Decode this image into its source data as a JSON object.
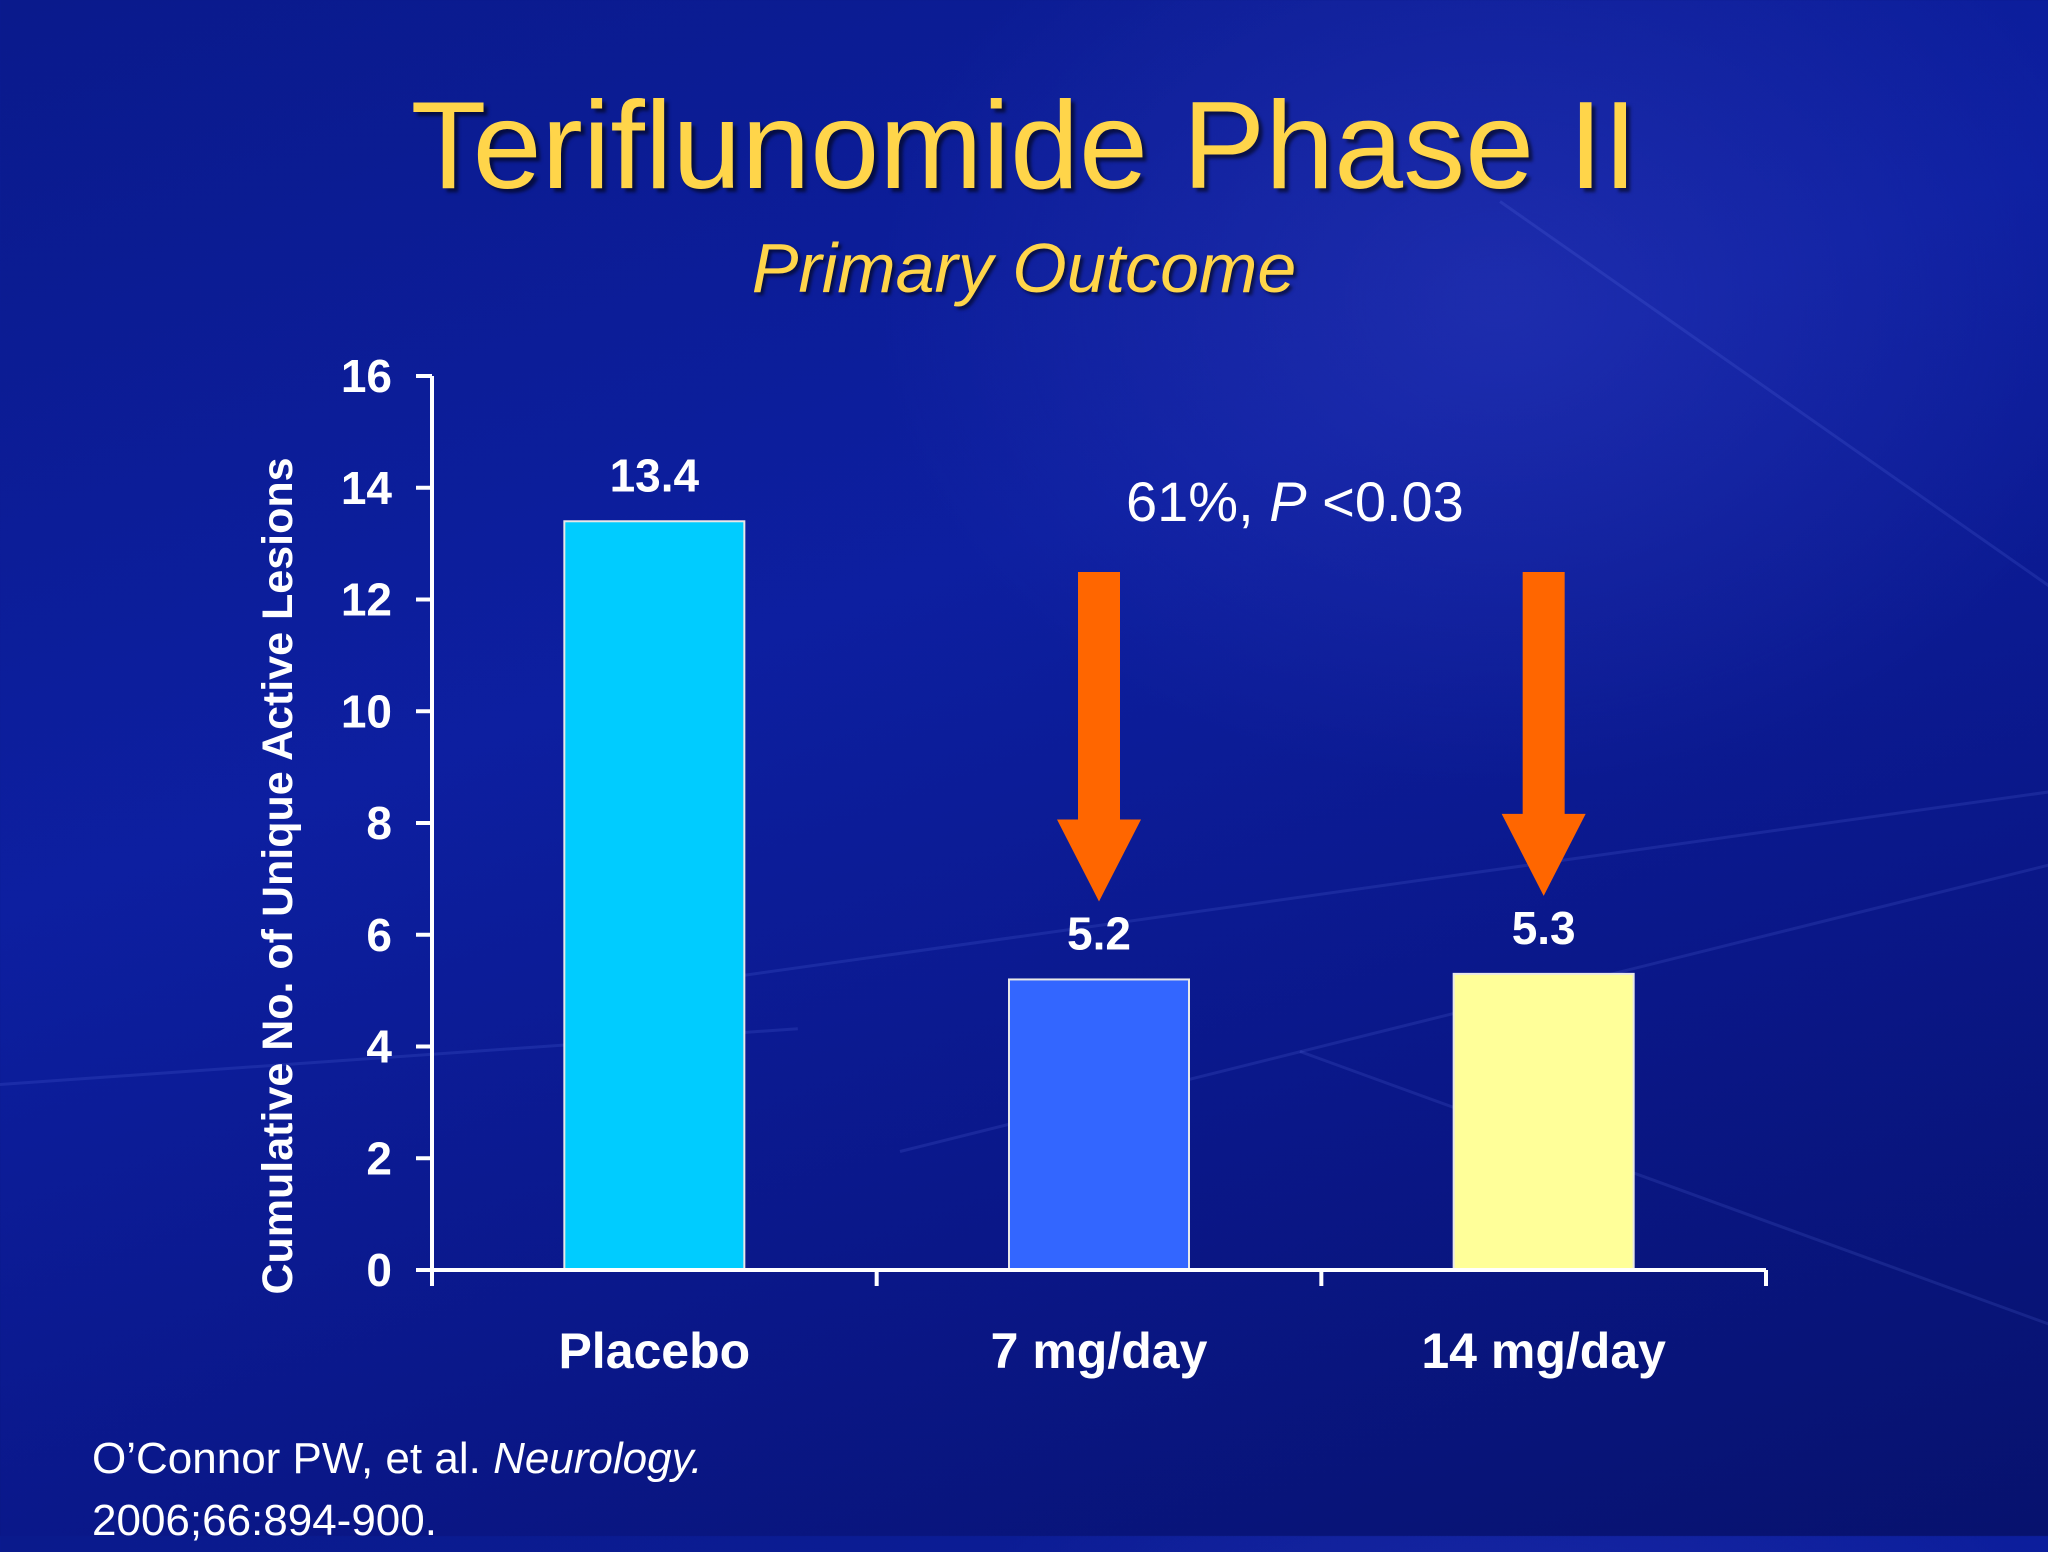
{
  "slide": {
    "title": "Teriflunomide Phase II",
    "subtitle": "Primary Outcome"
  },
  "annotation": {
    "pct": "61%,",
    "p_label": "P",
    "p_value": "<0.03"
  },
  "citation": {
    "authors": "O’Connor PW, et al.",
    "journal": "Neurology.",
    "details": "2006;66:894-900."
  },
  "colors": {
    "title": "#ffd54a",
    "arrow": "#ff6600",
    "axis": "#ffffff"
  },
  "chart_data": {
    "type": "bar",
    "title": "",
    "xlabel": "",
    "ylabel": "Cumulative No. of Unique Active Lesions",
    "categories": [
      "Placebo",
      "7 mg/day",
      "14 mg/day"
    ],
    "values": [
      13.4,
      5.2,
      5.3
    ],
    "data_labels": [
      "13.4",
      "5.2",
      "5.3"
    ],
    "bar_colors": [
      "#00ccff",
      "#3366ff",
      "#ffff99"
    ],
    "ylim": [
      0,
      16
    ],
    "yticks": [
      0,
      2,
      4,
      6,
      8,
      10,
      12,
      14,
      16
    ],
    "grid": false,
    "arrows_on": [
      "7 mg/day",
      "14 mg/day"
    ]
  }
}
